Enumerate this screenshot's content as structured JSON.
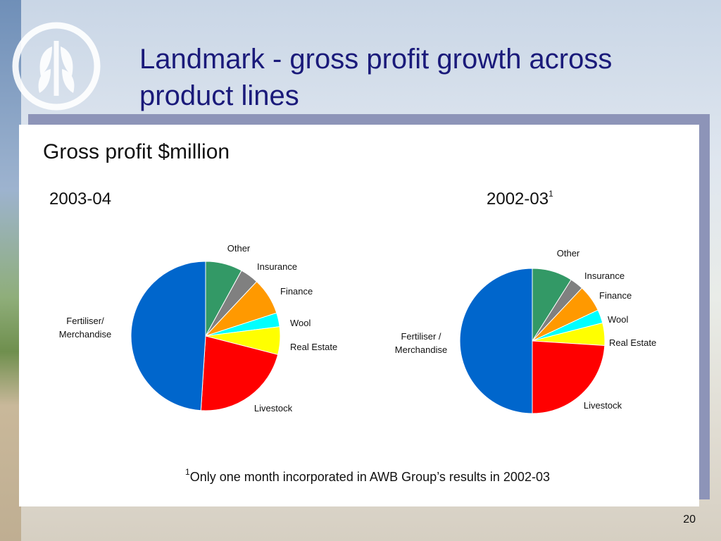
{
  "slide": {
    "title": "Landmark - gross profit growth across product lines",
    "subtitle": "Gross profit $million",
    "page_number": "20",
    "footnote_marker": "1",
    "footnote_text": "Only one month incorporated in AWB Group’s results in 2002-03"
  },
  "logo": {
    "icon": "wheat-sheaf-logo-icon",
    "color": "#ffffff"
  },
  "chart_data": [
    {
      "type": "pie",
      "title": "2003-04",
      "title_superscript": "",
      "categories": [
        "Other",
        "Insurance",
        "Finance",
        "Wool",
        "Real Estate",
        "Livestock",
        "Fertiliser/ Merchandise"
      ],
      "label_lines": [
        [
          "Other"
        ],
        [
          "Insurance"
        ],
        [
          "Finance"
        ],
        [
          "Wool"
        ],
        [
          "Real Estate"
        ],
        [
          "Livestock"
        ],
        [
          "Fertiliser/",
          "Merchandise"
        ]
      ],
      "values": [
        8,
        4,
        8,
        3,
        6,
        22,
        49
      ],
      "colors": [
        "#339966",
        "#808080",
        "#ff9900",
        "#00ffff",
        "#ffff00",
        "#ff0000",
        "#0066cc"
      ]
    },
    {
      "type": "pie",
      "title": "2002-03",
      "title_superscript": "1",
      "categories": [
        "Other",
        "Insurance",
        "Finance",
        "Wool",
        "Real Estate",
        "Livestock",
        "Fertiliser / Merchandise"
      ],
      "label_lines": [
        [
          "Other"
        ],
        [
          "Insurance"
        ],
        [
          "Finance"
        ],
        [
          "Wool"
        ],
        [
          "Real Estate"
        ],
        [
          "Livestock"
        ],
        [
          "Fertiliser /",
          "Merchandise"
        ]
      ],
      "values": [
        9,
        3,
        6,
        3,
        5,
        24,
        50
      ],
      "colors": [
        "#339966",
        "#808080",
        "#ff9900",
        "#00ffff",
        "#ffff00",
        "#ff0000",
        "#0066cc"
      ]
    }
  ]
}
